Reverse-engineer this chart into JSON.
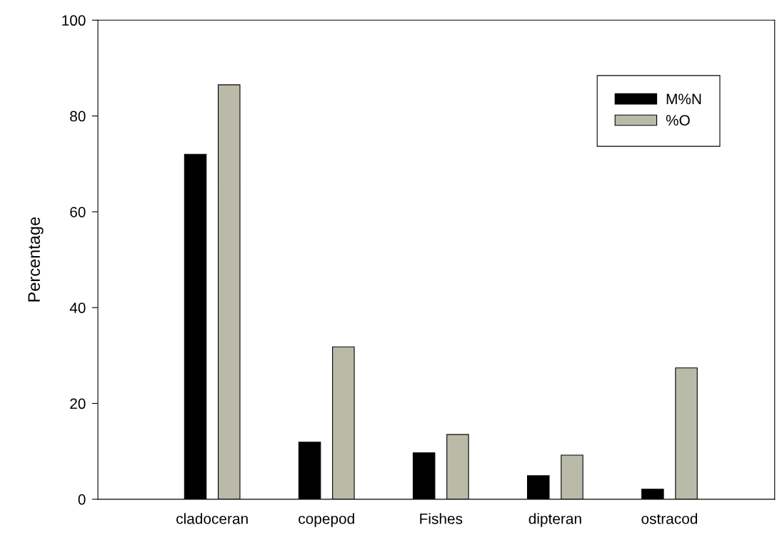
{
  "chart_data": {
    "type": "bar",
    "ylabel": "Percentage",
    "categories": [
      "cladoceran",
      "copepod",
      "Fishes",
      "dipteran",
      "ostracod"
    ],
    "series": [
      {
        "name": "M%N",
        "color": "#000000",
        "values": [
          72.0,
          11.9,
          9.7,
          4.9,
          2.1
        ]
      },
      {
        "name": "%O",
        "color": "#babaa8",
        "values": [
          86.5,
          31.8,
          13.5,
          9.2,
          27.4
        ]
      }
    ],
    "ylim": [
      0,
      100
    ],
    "yticks": [
      0,
      20,
      40,
      60,
      80,
      100
    ],
    "grid": false,
    "legend": "top right"
  }
}
